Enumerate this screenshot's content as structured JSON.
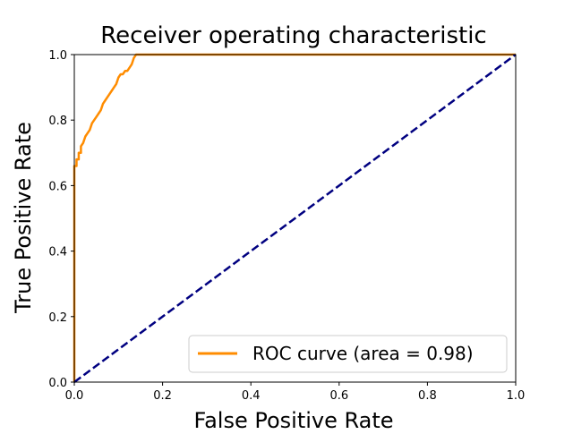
{
  "chart_data": {
    "type": "line",
    "title": "Receiver operating characteristic",
    "xlabel": "False Positive Rate",
    "ylabel": "True Positive Rate",
    "xlim": [
      0.0,
      1.0
    ],
    "ylim": [
      0.0,
      1.0
    ],
    "x_ticks": [
      "0.0",
      "0.2",
      "0.4",
      "0.6",
      "0.8",
      "1.0"
    ],
    "y_ticks": [
      "0.0",
      "0.2",
      "0.4",
      "0.6",
      "0.8",
      "1.0"
    ],
    "grid": false,
    "legend_position": "lower-right",
    "series": [
      {
        "name": "ROC curve (area = 0.98)",
        "color": "#ff8c00",
        "line_style": "solid",
        "points": [
          [
            0.0,
            0.0
          ],
          [
            0.0,
            0.66
          ],
          [
            0.005,
            0.66
          ],
          [
            0.005,
            0.68
          ],
          [
            0.01,
            0.68
          ],
          [
            0.01,
            0.7
          ],
          [
            0.015,
            0.7
          ],
          [
            0.015,
            0.72
          ],
          [
            0.02,
            0.73
          ],
          [
            0.025,
            0.75
          ],
          [
            0.03,
            0.76
          ],
          [
            0.035,
            0.77
          ],
          [
            0.04,
            0.79
          ],
          [
            0.045,
            0.8
          ],
          [
            0.05,
            0.81
          ],
          [
            0.055,
            0.82
          ],
          [
            0.06,
            0.83
          ],
          [
            0.065,
            0.85
          ],
          [
            0.07,
            0.86
          ],
          [
            0.075,
            0.87
          ],
          [
            0.08,
            0.88
          ],
          [
            0.085,
            0.89
          ],
          [
            0.09,
            0.9
          ],
          [
            0.095,
            0.91
          ],
          [
            0.1,
            0.93
          ],
          [
            0.105,
            0.94
          ],
          [
            0.11,
            0.94
          ],
          [
            0.115,
            0.95
          ],
          [
            0.12,
            0.95
          ],
          [
            0.125,
            0.96
          ],
          [
            0.13,
            0.97
          ],
          [
            0.135,
            0.99
          ],
          [
            0.14,
            1.0
          ],
          [
            1.0,
            1.0
          ]
        ]
      },
      {
        "name": "",
        "color": "#000080",
        "line_style": "dashed",
        "points": [
          [
            0.0,
            0.0
          ],
          [
            1.0,
            1.0
          ]
        ]
      }
    ]
  }
}
